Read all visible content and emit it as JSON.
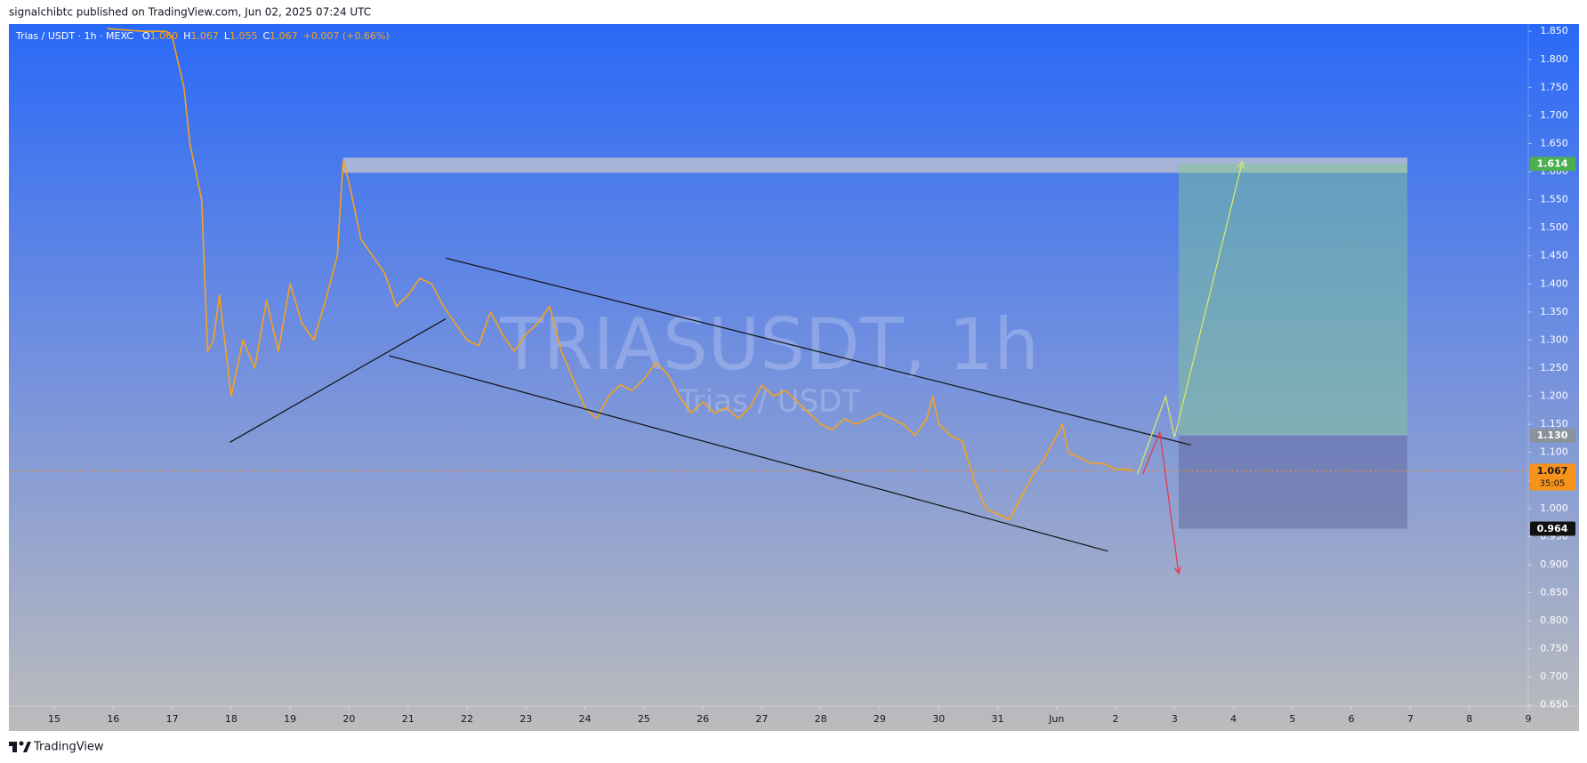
{
  "header": {
    "publisher": "signalchibtc published on TradingView.com, Jun 02, 2025 07:24 UTC",
    "brand": "TradingView"
  },
  "chart_data": {
    "type": "line",
    "symbol": "Trias / USDT · 1h · MEXC",
    "ohlc_labels": [
      "O",
      "H",
      "L",
      "C"
    ],
    "ohlc": [
      "1.060",
      "1.067",
      "1.055",
      "1.067"
    ],
    "change": "+0.007 (+0.66%)",
    "watermark": "TRIASUSDT, 1h",
    "watermark_sub": "Trias / USDT",
    "color": "#f7a21b",
    "x": [
      15.9,
      16.5,
      16.9,
      17.0,
      17.2,
      17.3,
      17.5,
      17.6,
      17.7,
      17.8,
      18.0,
      18.2,
      18.4,
      18.6,
      18.8,
      19.0,
      19.2,
      19.4,
      19.6,
      19.8,
      19.9,
      20.0,
      20.2,
      20.4,
      20.6,
      20.8,
      21.0,
      21.2,
      21.4,
      21.6,
      21.8,
      22.0,
      22.2,
      22.4,
      22.6,
      22.8,
      23.0,
      23.2,
      23.4,
      23.6,
      23.8,
      24.0,
      24.2,
      24.4,
      24.6,
      24.8,
      25.0,
      25.2,
      25.4,
      25.6,
      25.8,
      26.0,
      26.2,
      26.4,
      26.6,
      26.8,
      27.0,
      27.2,
      27.4,
      27.6,
      27.8,
      28.0,
      28.2,
      28.4,
      28.6,
      28.8,
      29.0,
      29.2,
      29.4,
      29.6,
      29.8,
      29.9,
      30.0,
      30.2,
      30.4,
      30.6,
      30.8,
      31.0,
      31.2,
      31.4,
      31.6,
      31.8,
      32.0,
      32.1,
      32.2,
      32.4,
      32.6,
      32.8,
      33.0,
      33.2,
      33.3
    ],
    "values": [
      1.855,
      1.85,
      1.85,
      1.84,
      1.75,
      1.65,
      1.55,
      1.28,
      1.3,
      1.38,
      1.2,
      1.3,
      1.25,
      1.37,
      1.28,
      1.4,
      1.33,
      1.3,
      1.37,
      1.45,
      1.62,
      1.58,
      1.48,
      1.45,
      1.42,
      1.36,
      1.38,
      1.41,
      1.4,
      1.36,
      1.33,
      1.3,
      1.29,
      1.35,
      1.31,
      1.28,
      1.31,
      1.33,
      1.36,
      1.28,
      1.23,
      1.18,
      1.16,
      1.2,
      1.22,
      1.21,
      1.23,
      1.26,
      1.24,
      1.2,
      1.17,
      1.19,
      1.17,
      1.18,
      1.16,
      1.18,
      1.22,
      1.2,
      1.21,
      1.19,
      1.17,
      1.15,
      1.14,
      1.16,
      1.15,
      1.16,
      1.17,
      1.16,
      1.15,
      1.13,
      1.16,
      1.2,
      1.15,
      1.13,
      1.12,
      1.05,
      1.0,
      0.99,
      0.98,
      1.02,
      1.06,
      1.09,
      1.13,
      1.15,
      1.1,
      1.09,
      1.08,
      1.08,
      1.07,
      1.07,
      1.067
    ],
    "xlim": [
      14.23,
      40.0
    ],
    "ylim": [
      0.648,
      1.863
    ],
    "xticks": [
      15,
      16,
      17,
      18,
      19,
      20,
      21,
      22,
      23,
      24,
      25,
      26,
      27,
      28,
      29,
      30,
      31,
      {
        "value": 32,
        "label": "Jun"
      },
      {
        "value": 33,
        "label": "2"
      },
      {
        "value": 34,
        "label": "3"
      },
      {
        "value": 35,
        "label": "4"
      },
      {
        "value": 36,
        "label": "5"
      },
      {
        "value": 37,
        "label": "6"
      },
      {
        "value": 38,
        "label": "7"
      },
      {
        "value": 39,
        "label": "8"
      },
      {
        "value": 40,
        "label": "9"
      }
    ],
    "yticks": [
      {
        "value": 0.65,
        "label": "0.650"
      },
      {
        "value": 0.7,
        "label": "0.700"
      },
      {
        "value": 0.75,
        "label": "0.750"
      },
      {
        "value": 0.8,
        "label": "0.800"
      },
      {
        "value": 0.85,
        "label": "0.850"
      },
      {
        "value": 0.9,
        "label": "0.900"
      },
      {
        "value": 0.95,
        "label": "0.950"
      },
      {
        "value": 1.0,
        "label": "1.000"
      },
      {
        "value": 1.05,
        "label": "1.050"
      },
      {
        "value": 1.1,
        "label": "1.100"
      },
      {
        "value": 1.15,
        "label": "1.150"
      },
      {
        "value": 1.2,
        "label": "1.200"
      },
      {
        "value": 1.25,
        "label": "1.250"
      },
      {
        "value": 1.3,
        "label": "1.300"
      },
      {
        "value": 1.35,
        "label": "1.350"
      },
      {
        "value": 1.4,
        "label": "1.400"
      },
      {
        "value": 1.45,
        "label": "1.450"
      },
      {
        "value": 1.5,
        "label": "1.500"
      },
      {
        "value": 1.55,
        "label": "1.550"
      },
      {
        "value": 1.6,
        "label": "1.600"
      },
      {
        "value": 1.65,
        "label": "1.650"
      },
      {
        "value": 1.7,
        "label": "1.700"
      },
      {
        "value": 1.75,
        "label": "1.750"
      },
      {
        "value": 1.8,
        "label": "1.800"
      },
      {
        "value": 1.85,
        "label": "1.850"
      }
    ],
    "zone": {
      "x": [
        19.9,
        37.95
      ],
      "y": [
        1.598,
        1.625
      ],
      "color": "rgba(205,205,205,0.7)"
    },
    "position": {
      "x": [
        34.07,
        37.95
      ],
      "target": 1.614,
      "entry": 1.13,
      "stop": 0.964,
      "profit_color": "rgba(130,205,140,0.45)",
      "loss_color": "rgba(90,95,150,0.45)"
    },
    "drawings": [
      {
        "x": [
          17.98,
          21.64
        ],
        "y": [
          1.118,
          1.338
        ],
        "color": "#111111"
      },
      {
        "x": [
          21.64,
          34.28
        ],
        "y": [
          1.446,
          1.113
        ],
        "color": "#111111"
      },
      {
        "x": [
          20.68,
          32.87
        ],
        "y": [
          1.272,
          0.924
        ],
        "color": "#111111"
      },
      {
        "x": [
          33.37,
          33.85,
          34.0,
          35.15
        ],
        "y": [
          1.061,
          1.2,
          1.127,
          1.618
        ],
        "color": "#d4e86a",
        "arrow": true
      },
      {
        "x": [
          33.46,
          33.75,
          34.07
        ],
        "y": [
          1.061,
          1.136,
          0.884
        ],
        "color": "#e53950",
        "arrow": true
      }
    ],
    "price_tags": [
      {
        "value": 1.614,
        "label": "1.614",
        "color": "#4caf50",
        "text_color": "#ffffff"
      },
      {
        "value": 1.13,
        "label": "1.130",
        "color": "#8a939c",
        "text_color": "#ffffff"
      },
      {
        "value": 0.964,
        "label": "0.964",
        "color": "#111111",
        "text_color": "#ffffff"
      }
    ],
    "current": {
      "value": 1.067,
      "label": "1.067",
      "countdown": "35:05",
      "color": "#f7931a",
      "text_color": "#1a1a1a"
    }
  }
}
